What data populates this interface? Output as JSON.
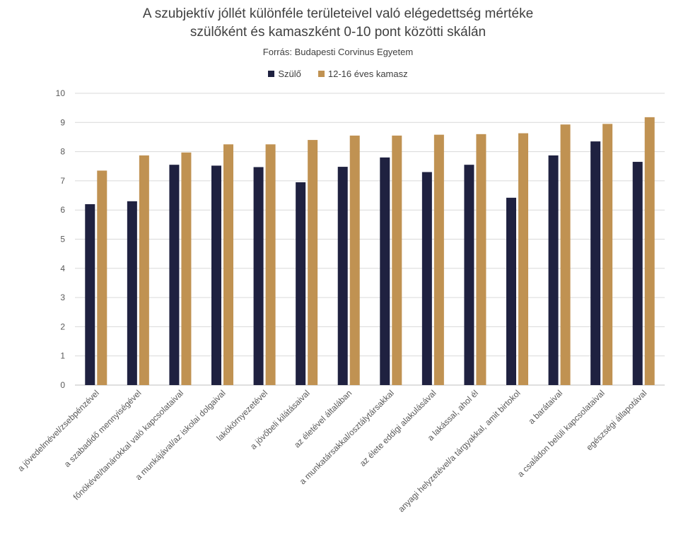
{
  "chart_data": {
    "type": "bar",
    "title_line1": "A szubjektív  jóllét különféle területeivel való elégedettség mértéke",
    "title_line2": "szülőként  és kamaszként  0-10 pont közötti skálán",
    "subtitle": "Forrás: Budapesti Corvinus Egyetem",
    "legend_position": "top",
    "grid": true,
    "ylim": [
      0,
      10
    ],
    "yticks": [
      "0",
      "1",
      "2",
      "3",
      "4",
      "5",
      "6",
      "7",
      "8",
      "9",
      "10"
    ],
    "categories": [
      "a jövedelmével/zsebpénzével",
      "a szabadidő mennyiségével",
      "főnökével/tanárokkal való kapcsolataival",
      "a munkájával/az iskolai dolgaival",
      "lakókörnyezetével",
      "a jövőbeli kilátásaival",
      "az életével általában",
      "a munkatársakkal/osztálytársakkal",
      "az élete eddigi alakulásával",
      "a lakással, ahol él",
      "anyagi helyzetével/a tárgyakkal, amit birtokol",
      "a barátaival",
      "a családon belüli kapcsolataival",
      "egészségi állapotával"
    ],
    "series": [
      {
        "name": "Szülő",
        "color": "#1f2140",
        "values": [
          6.2,
          6.3,
          7.55,
          7.52,
          7.47,
          6.95,
          7.48,
          7.8,
          7.3,
          7.55,
          6.42,
          7.87,
          8.35,
          7.65
        ]
      },
      {
        "name": "12-16 éves kamasz",
        "color": "#c09252",
        "values": [
          7.35,
          7.87,
          7.97,
          8.25,
          8.25,
          8.4,
          8.55,
          8.55,
          8.58,
          8.6,
          8.63,
          8.93,
          8.95,
          9.18
        ]
      }
    ]
  }
}
